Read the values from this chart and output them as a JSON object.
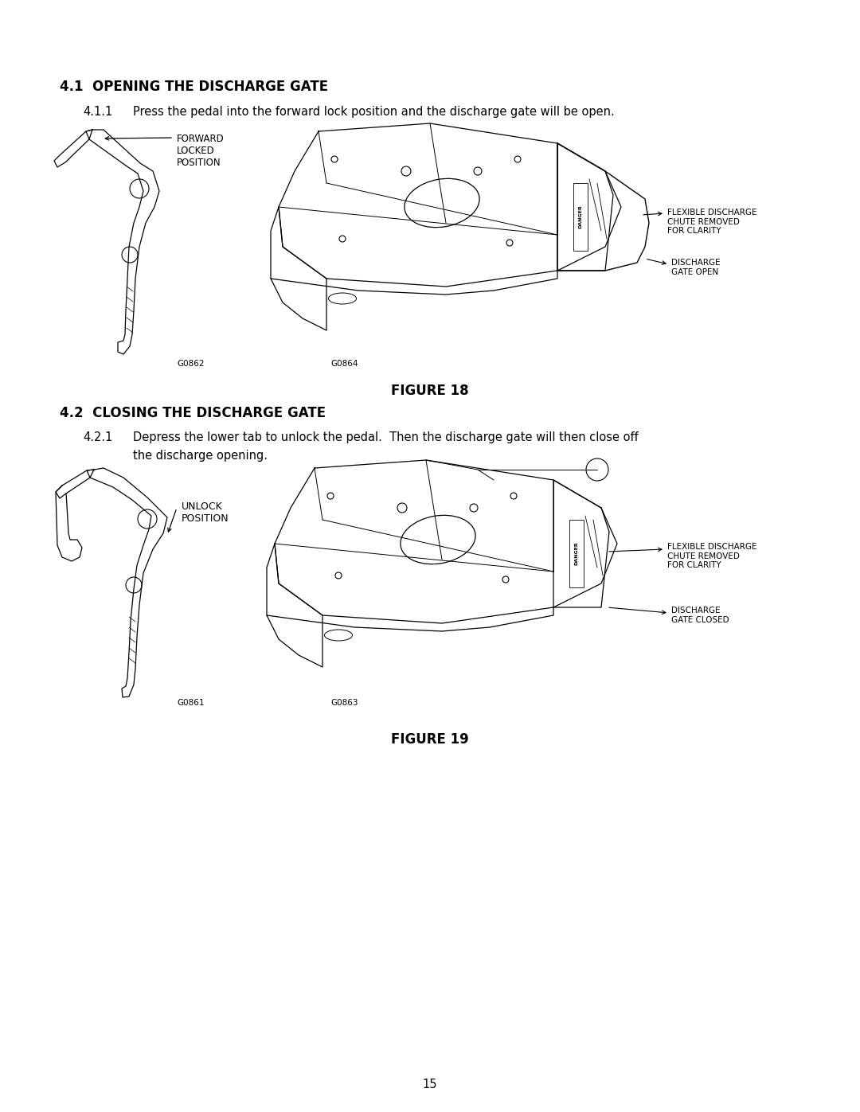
{
  "bg_color": "#ffffff",
  "text_color": "#000000",
  "page_number": "15",
  "section1_title": "4.1  OPENING THE DISCHARGE GATE",
  "section1_sub": "4.1.1",
  "section1_text": "Press the pedal into the forward lock position and the discharge gate will be open.",
  "figure18_label": "FIGURE 18",
  "section2_title": "4.2  CLOSING THE DISCHARGE GATE",
  "section2_sub": "4.2.1",
  "section2_text1": "Depress the lower tab to unlock the pedal.  Then the discharge gate will then close off",
  "section2_text2": "the discharge opening.",
  "figure19_label": "FIGURE 19",
  "callout_forward_locked": "FORWARD\nLOCKED\nPOSITION",
  "callout_flex_discharge1": "FLEXIBLE DISCHARGE\nCHUTE REMOVED\nFOR CLARITY",
  "callout_discharge_open": "DISCHARGE\nGATE OPEN",
  "callout_unlock": "UNLOCK\nPOSITION",
  "callout_flex_discharge2": "FLEXIBLE DISCHARGE\nCHUTE REMOVED\nFOR CLARITY",
  "callout_discharge_closed": "DISCHARGE\nGATE CLOSED",
  "fig_code_g0862": "G0862",
  "fig_code_g0864": "G0864",
  "fig_code_g0861": "G0861",
  "fig_code_g0863": "G0863"
}
